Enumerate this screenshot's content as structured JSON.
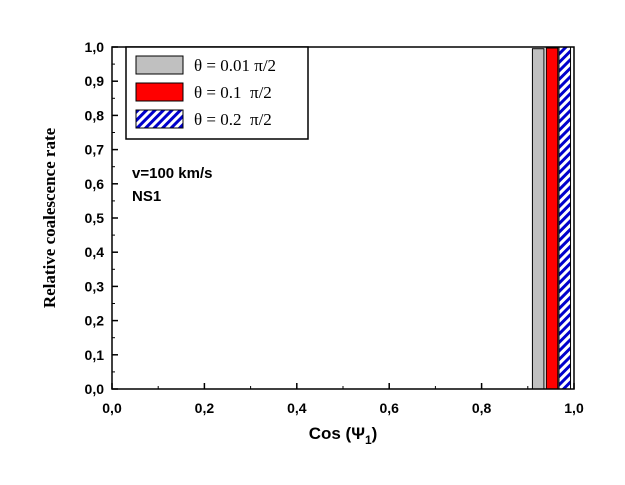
{
  "chart_data": {
    "type": "bar",
    "xlabel": "Cos (Ψ",
    "xlabel_sub": "1",
    "xlabel_close": ")",
    "ylabel": "Relative coalescence rate",
    "xlim": [
      0.0,
      1.0
    ],
    "ylim": [
      0.0,
      1.0
    ],
    "xticks": [
      "0,0",
      "0,2",
      "0,4",
      "0,6",
      "0,8",
      "1,0"
    ],
    "yticks": [
      "0,0",
      "0,1",
      "0,2",
      "0,3",
      "0,4",
      "0,5",
      "0,6",
      "0,7",
      "0,8",
      "0,9",
      "1,0"
    ],
    "grid": false,
    "legend_position": "top-left",
    "annotations": [
      "v=100 km/s",
      "NS1"
    ],
    "bar_width": 0.025,
    "series": [
      {
        "name": "θ = 0.01 π/2",
        "x": 0.9225,
        "value": 0.995,
        "color": "#c0c0c0",
        "pattern": "solid"
      },
      {
        "name": "θ = 0.1  π/2",
        "x": 0.9525,
        "value": 0.997,
        "color": "#ff0000",
        "pattern": "solid"
      },
      {
        "name": "θ = 0.2  π/2",
        "x": 0.98,
        "value": 1.0,
        "color": "#0000cc",
        "pattern": "hatched"
      }
    ]
  }
}
